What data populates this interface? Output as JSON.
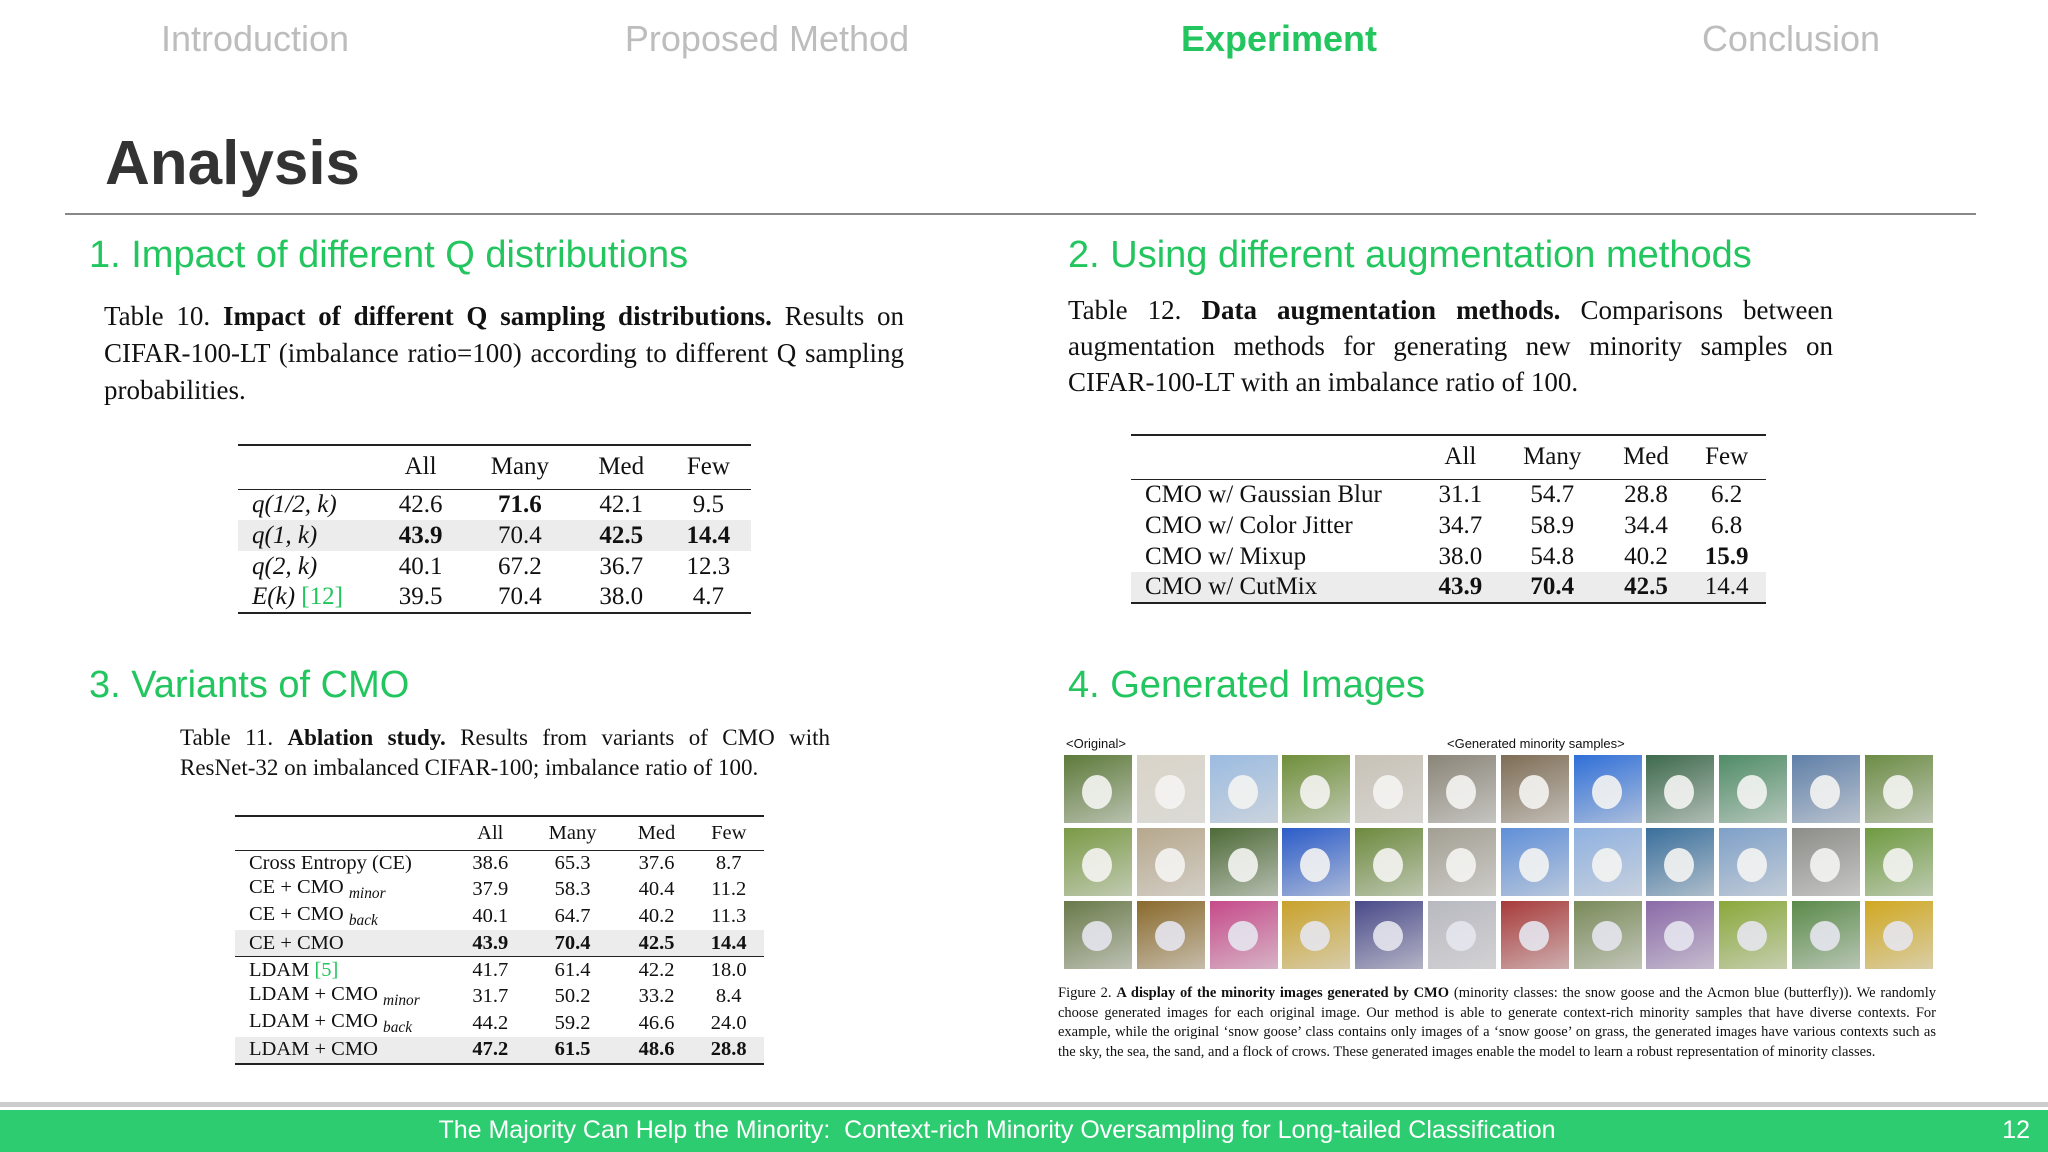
{
  "nav": [
    "Introduction",
    "Proposed Method",
    "Experiment",
    "Conclusion"
  ],
  "title": "Analysis",
  "sections": [
    {
      "heading": "1. Impact of different Q distributions",
      "caption": {
        "label": "Table 10.",
        "bold": "Impact of different Q sampling distributions.",
        "text": "Results on CIFAR-100-LT (imbalance ratio=100) according to different Q sampling probabilities."
      },
      "columns": [
        "All",
        "Many",
        "Med",
        "Few"
      ],
      "rows": [
        {
          "name": "q(1/2, k)",
          "values": [
            "42.6",
            "71.6",
            "42.1",
            "9.5"
          ]
        },
        {
          "name": "q(1, k)",
          "values": [
            "43.9",
            "70.4",
            "42.5",
            "14.4"
          ]
        },
        {
          "name": "q(2, k)",
          "values": [
            "40.1",
            "67.2",
            "36.7",
            "12.3"
          ]
        },
        {
          "name": "E(k)",
          "ref": "[12]",
          "values": [
            "39.5",
            "70.4",
            "38.0",
            "4.7"
          ]
        }
      ]
    },
    {
      "heading": "2. Using different augmentation methods",
      "caption": {
        "label": "Table 12.",
        "bold": "Data augmentation methods.",
        "text": "Comparisons between augmentation methods for generating new minority samples on CIFAR-100-LT with an imbalance ratio of 100."
      },
      "columns": [
        "All",
        "Many",
        "Med",
        "Few"
      ],
      "rows": [
        {
          "name": "CMO w/ Gaussian Blur",
          "values": [
            "31.1",
            "54.7",
            "28.8",
            "6.2"
          ]
        },
        {
          "name": "CMO w/ Color Jitter",
          "values": [
            "34.7",
            "58.9",
            "34.4",
            "6.8"
          ]
        },
        {
          "name": "CMO w/ Mixup",
          "values": [
            "38.0",
            "54.8",
            "40.2",
            "15.9"
          ]
        },
        {
          "name": "CMO w/ CutMix",
          "values": [
            "43.9",
            "70.4",
            "42.5",
            "14.4"
          ]
        }
      ]
    },
    {
      "heading": "3. Variants of CMO",
      "caption": {
        "label": "Table 11.",
        "bold": "Ablation study.",
        "text": "Results from variants of CMO with ResNet-32 on imbalanced CIFAR-100; imbalance ratio of 100."
      },
      "columns": [
        "All",
        "Many",
        "Med",
        "Few"
      ],
      "rows": [
        {
          "name": "Cross Entropy (CE)",
          "values": [
            "38.6",
            "65.3",
            "37.6",
            "8.7"
          ]
        },
        {
          "name": "CE + CMO",
          "sub": "minor",
          "values": [
            "37.9",
            "58.3",
            "40.4",
            "11.2"
          ]
        },
        {
          "name": "CE + CMO",
          "sub": "back",
          "values": [
            "40.1",
            "64.7",
            "40.2",
            "11.3"
          ]
        },
        {
          "name": "CE + CMO",
          "values": [
            "43.9",
            "70.4",
            "42.5",
            "14.4"
          ]
        },
        {
          "name": "LDAM",
          "ref": "[5]",
          "values": [
            "41.7",
            "61.4",
            "42.2",
            "18.0"
          ]
        },
        {
          "name": "LDAM + CMO",
          "sub": "minor",
          "values": [
            "31.7",
            "50.2",
            "33.2",
            "8.4"
          ]
        },
        {
          "name": "LDAM + CMO",
          "sub": "back",
          "values": [
            "44.2",
            "59.2",
            "46.6",
            "24.0"
          ]
        },
        {
          "name": "LDAM + CMO",
          "values": [
            "47.2",
            "61.5",
            "48.6",
            "28.8"
          ]
        }
      ]
    },
    {
      "heading": "4. Generated Images",
      "original_label": "<Original>",
      "generated_label": "<Generated minority samples>",
      "caption": {
        "label": "Figure 2.",
        "bold": "A display of the minority images generated by CMO",
        "text": "(minority classes: the snow goose and the Acmon blue (butterfly)). We randomly choose generated images for each original image. Our method is able to generate context-rich minority samples that have diverse contexts. For example, while the original ‘snow goose’ class contains only images of a ‘snow goose’ on grass, the generated images have various contexts such as the sky, the sea, the sand, and a flock of crows. These generated images enable the model to learn a robust representation of minority classes."
      }
    }
  ],
  "footer": {
    "text": "The Majority Can Help the Minority:  Context-rich Minority Oversampling for Long-tailed Classification",
    "page": "12"
  }
}
